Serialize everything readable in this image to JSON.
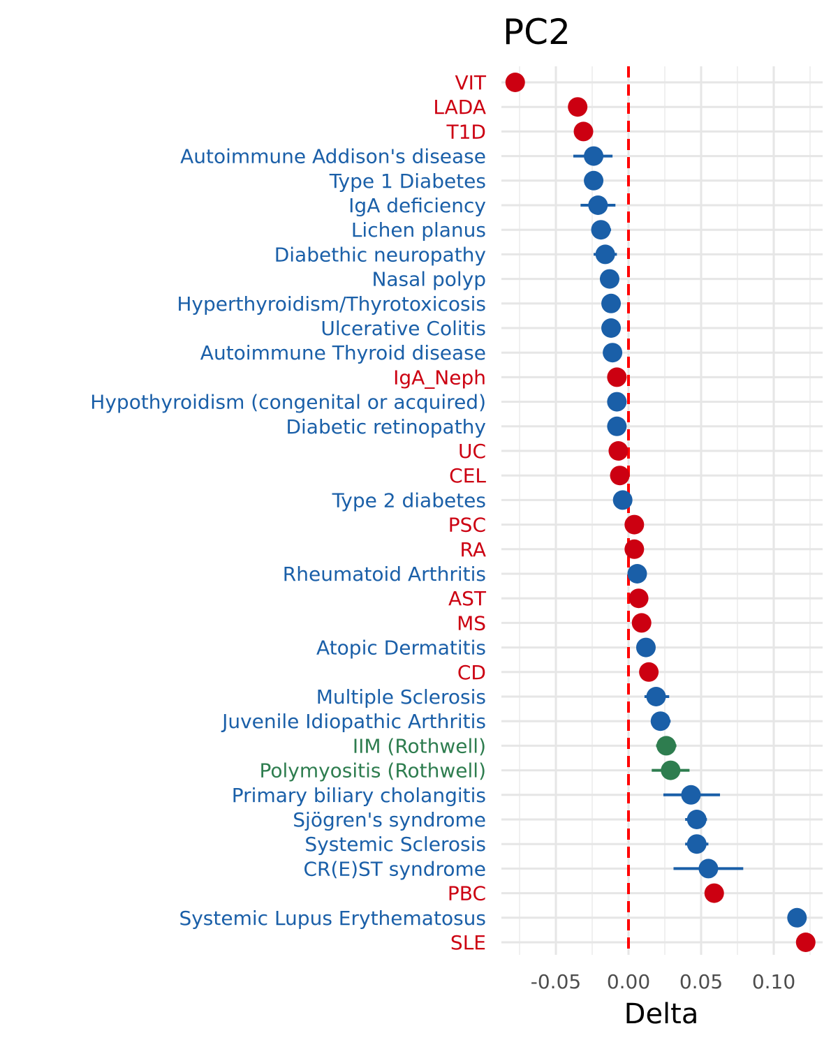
{
  "chart_data": {
    "type": "scatter",
    "title": "PC2",
    "xlabel": "Delta",
    "ylabel": "",
    "xlim": [
      -0.078,
      0.13
    ],
    "xticks": [
      -0.05,
      0.0,
      0.05,
      0.1
    ],
    "xtick_labels": [
      "-0.05",
      "0.00",
      "0.05",
      "0.10"
    ],
    "reference_line": {
      "x": 0,
      "color": "#ff0000",
      "style": "dashed"
    },
    "grid": true,
    "legend": "none",
    "group_colors": {
      "red": "#cc0011",
      "blue": "#1a5fa8",
      "green": "#2e7d4f"
    },
    "points": [
      {
        "label": "VIT",
        "group": "red",
        "x": -0.078,
        "lo": null,
        "hi": null
      },
      {
        "label": "LADA",
        "group": "red",
        "x": -0.035,
        "lo": null,
        "hi": null
      },
      {
        "label": "T1D",
        "group": "red",
        "x": -0.031,
        "lo": null,
        "hi": null
      },
      {
        "label": "Autoimmune Addison's disease",
        "group": "blue",
        "x": -0.024,
        "lo": -0.038,
        "hi": -0.011
      },
      {
        "label": "Type 1 Diabetes",
        "group": "blue",
        "x": -0.024,
        "lo": null,
        "hi": null
      },
      {
        "label": "IgA deficiency",
        "group": "blue",
        "x": -0.021,
        "lo": -0.033,
        "hi": -0.009
      },
      {
        "label": "Lichen planus",
        "group": "blue",
        "x": -0.019,
        "lo": -0.025,
        "hi": -0.012
      },
      {
        "label": "Diabethic neuropathy",
        "group": "blue",
        "x": -0.016,
        "lo": -0.024,
        "hi": -0.008
      },
      {
        "label": "Nasal polyp",
        "group": "blue",
        "x": -0.013,
        "lo": null,
        "hi": null
      },
      {
        "label": "Hyperthyroidism/Thyrotoxicosis",
        "group": "blue",
        "x": -0.012,
        "lo": null,
        "hi": null
      },
      {
        "label": "Ulcerative Colitis",
        "group": "blue",
        "x": -0.012,
        "lo": null,
        "hi": null
      },
      {
        "label": "Autoimmune Thyroid disease",
        "group": "blue",
        "x": -0.011,
        "lo": null,
        "hi": null
      },
      {
        "label": "IgA_Neph",
        "group": "red",
        "x": -0.008,
        "lo": null,
        "hi": null
      },
      {
        "label": "Hypothyroidism (congenital or acquired)",
        "group": "blue",
        "x": -0.008,
        "lo": null,
        "hi": null
      },
      {
        "label": "Diabetic retinopathy",
        "group": "blue",
        "x": -0.008,
        "lo": null,
        "hi": null
      },
      {
        "label": "UC",
        "group": "red",
        "x": -0.007,
        "lo": null,
        "hi": null
      },
      {
        "label": "CEL",
        "group": "red",
        "x": -0.006,
        "lo": null,
        "hi": null
      },
      {
        "label": "Type 2 diabetes",
        "group": "blue",
        "x": -0.004,
        "lo": null,
        "hi": null
      },
      {
        "label": "PSC",
        "group": "red",
        "x": 0.004,
        "lo": null,
        "hi": null
      },
      {
        "label": "RA",
        "group": "red",
        "x": 0.004,
        "lo": null,
        "hi": null
      },
      {
        "label": "Rheumatoid Arthritis",
        "group": "blue",
        "x": 0.006,
        "lo": null,
        "hi": null
      },
      {
        "label": "AST",
        "group": "red",
        "x": 0.007,
        "lo": null,
        "hi": null
      },
      {
        "label": "MS",
        "group": "red",
        "x": 0.009,
        "lo": null,
        "hi": null
      },
      {
        "label": "Atopic Dermatitis",
        "group": "blue",
        "x": 0.012,
        "lo": null,
        "hi": null
      },
      {
        "label": "CD",
        "group": "red",
        "x": 0.014,
        "lo": null,
        "hi": null
      },
      {
        "label": "Multiple Sclerosis",
        "group": "blue",
        "x": 0.019,
        "lo": 0.011,
        "hi": 0.028
      },
      {
        "label": "Juvenile Idiopathic Arthritis",
        "group": "blue",
        "x": 0.022,
        "lo": 0.016,
        "hi": 0.029
      },
      {
        "label": "IIM (Rothwell)",
        "group": "green",
        "x": 0.026,
        "lo": 0.019,
        "hi": 0.033
      },
      {
        "label": "Polymyositis (Rothwell)",
        "group": "green",
        "x": 0.029,
        "lo": 0.016,
        "hi": 0.042
      },
      {
        "label": "Primary biliary cholangitis",
        "group": "blue",
        "x": 0.043,
        "lo": 0.024,
        "hi": 0.063
      },
      {
        "label": "Sjögren's syndrome",
        "group": "blue",
        "x": 0.047,
        "lo": 0.039,
        "hi": 0.054
      },
      {
        "label": "Systemic Sclerosis",
        "group": "blue",
        "x": 0.047,
        "lo": 0.039,
        "hi": 0.055
      },
      {
        "label": "CR(E)ST syndrome",
        "group": "blue",
        "x": 0.055,
        "lo": 0.031,
        "hi": 0.079
      },
      {
        "label": "PBC",
        "group": "red",
        "x": 0.059,
        "lo": null,
        "hi": null
      },
      {
        "label": "Systemic Lupus Erythematosus",
        "group": "blue",
        "x": 0.116,
        "lo": null,
        "hi": null
      },
      {
        "label": "SLE",
        "group": "red",
        "x": 0.122,
        "lo": null,
        "hi": null
      }
    ]
  }
}
